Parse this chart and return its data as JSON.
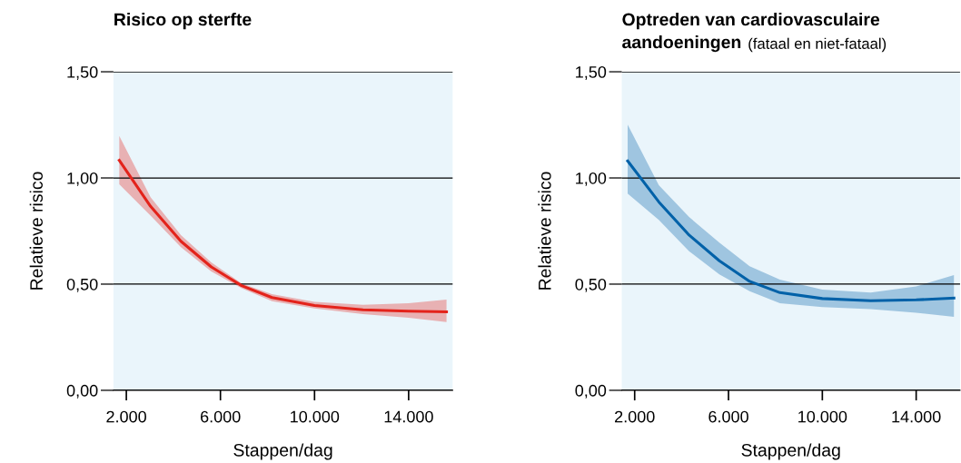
{
  "chart_data": [
    {
      "type": "line",
      "title": "Risico op sterfte",
      "xlabel": "Stappen/dag",
      "ylabel": "Relatieve risico",
      "x": [
        1700,
        3030,
        4320,
        5610,
        6900,
        8190,
        10000,
        12060,
        14000,
        15610
      ],
      "series": [
        {
          "color": "#e3231b",
          "values": [
            1.083,
            0.866,
            0.702,
            0.581,
            0.493,
            0.437,
            0.399,
            0.379,
            0.373,
            0.37
          ],
          "lower": [
            0.97,
            0.823,
            0.674,
            0.56,
            0.481,
            0.42,
            0.385,
            0.359,
            0.342,
            0.321
          ],
          "upper": [
            1.198,
            0.909,
            0.731,
            0.603,
            0.503,
            0.453,
            0.417,
            0.403,
            0.41,
            0.427
          ]
        }
      ],
      "xlim": [
        1450,
        15870
      ],
      "ylim": [
        0,
        1.5
      ],
      "xticks": [
        {
          "value": 2000,
          "label": "2.000"
        },
        {
          "value": 6000,
          "label": "6.000"
        },
        {
          "value": 10000,
          "label": "10.000"
        },
        {
          "value": 14000,
          "label": "14.000"
        }
      ],
      "yticks": [
        {
          "value": 0,
          "label": "0,00"
        },
        {
          "value": 0.5,
          "label": "0,50"
        },
        {
          "value": 1.0,
          "label": "1,00"
        },
        {
          "value": 1.5,
          "label": "1,50"
        }
      ],
      "grid": "y",
      "marker": "none",
      "line_style": "solid"
    },
    {
      "type": "line",
      "title": "Optreden van cardiovasculaire\naandoeningen",
      "subtitle": "(fataal en niet-fataal)",
      "xlabel": "Stappen/dag",
      "ylabel": "Relatieve risico",
      "x": [
        1700,
        3030,
        4320,
        5610,
        6900,
        8190,
        10000,
        12060,
        14000,
        15610
      ],
      "series": [
        {
          "color": "#0061a8",
          "values": [
            1.08,
            0.887,
            0.731,
            0.61,
            0.513,
            0.46,
            0.432,
            0.422,
            0.426,
            0.434
          ],
          "lower": [
            0.926,
            0.802,
            0.655,
            0.546,
            0.467,
            0.41,
            0.392,
            0.382,
            0.365,
            0.346
          ],
          "upper": [
            1.251,
            0.966,
            0.816,
            0.695,
            0.584,
            0.521,
            0.474,
            0.46,
            0.489,
            0.543
          ]
        }
      ],
      "xlim": [
        1450,
        15870
      ],
      "ylim": [
        0,
        1.5
      ],
      "xticks": [
        {
          "value": 2000,
          "label": "2.000"
        },
        {
          "value": 6000,
          "label": "6.000"
        },
        {
          "value": 10000,
          "label": "10.000"
        },
        {
          "value": 14000,
          "label": "14.000"
        }
      ],
      "yticks": [
        {
          "value": 0,
          "label": "0,00"
        },
        {
          "value": 0.5,
          "label": "0,50"
        },
        {
          "value": 1.0,
          "label": "1,00"
        },
        {
          "value": 1.5,
          "label": "1,50"
        }
      ],
      "grid": "y",
      "marker": "none",
      "line_style": "solid"
    }
  ]
}
